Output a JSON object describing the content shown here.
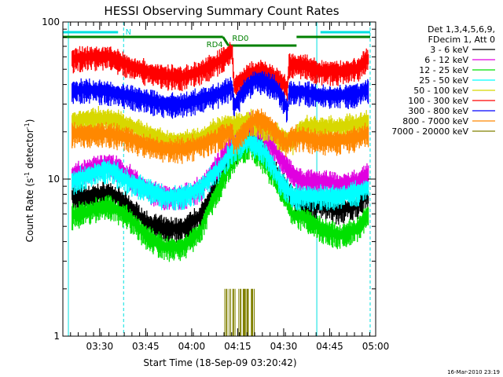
{
  "chart_data": {
    "type": "line",
    "title": "HESSI Observing Summary Count Rates",
    "xlabel": "Start Time (18-Sep-09 03:20:42)",
    "ylabel_main": "Count Rate (s",
    "ylabel_sup1": "-1",
    "ylabel_mid": " detector",
    "ylabel_sup2": "-1",
    "ylabel_end": ")",
    "y_scale": "log",
    "ylim": [
      1,
      100
    ],
    "y_ticks": [
      {
        "value": 1,
        "label": "1"
      },
      {
        "value": 10,
        "label": "10"
      },
      {
        "value": 100,
        "label": "100"
      }
    ],
    "xlim_minutes": [
      3.3,
      5.0
    ],
    "x_ticks": [
      {
        "value": 3.5,
        "label": "03:30"
      },
      {
        "value": 3.75,
        "label": "03:45"
      },
      {
        "value": 4.0,
        "label": "04:00"
      },
      {
        "value": 4.25,
        "label": "04:15"
      },
      {
        "value": 4.5,
        "label": "04:30"
      },
      {
        "value": 4.75,
        "label": "04:45"
      },
      {
        "value": 5.0,
        "label": "05:00"
      }
    ],
    "legend_header": [
      "Det 1,3,4,5,6,9,",
      "FDecim 1, Att 0"
    ],
    "legend_position": "right",
    "series": [
      {
        "name": "3 - 6 keV",
        "color": "#000000",
        "x": [
          3.35,
          3.45,
          3.55,
          3.65,
          3.75,
          3.85,
          3.95,
          4.05,
          4.15,
          4.25,
          4.32,
          4.4,
          4.48,
          4.55,
          4.6,
          4.7,
          4.8,
          4.9,
          4.95
        ],
        "y": [
          8,
          8,
          8.5,
          7,
          5.5,
          5,
          5,
          6,
          10,
          16,
          19,
          15,
          10,
          8,
          7,
          7,
          6.5,
          7,
          8
        ]
      },
      {
        "name": "6 - 12 keV",
        "color": "#e000e0",
        "x": [
          3.35,
          3.45,
          3.55,
          3.65,
          3.75,
          3.85,
          3.95,
          4.05,
          4.15,
          4.25,
          4.32,
          4.4,
          4.48,
          4.55,
          4.6,
          4.7,
          4.8,
          4.9,
          4.95
        ],
        "y": [
          11,
          12,
          13,
          11,
          9,
          8,
          8,
          9,
          13,
          20,
          23,
          19,
          14,
          11,
          10,
          10,
          9.5,
          10,
          11
        ]
      },
      {
        "name": "12 - 25 keV",
        "color": "#00e000",
        "x": [
          3.35,
          3.45,
          3.55,
          3.65,
          3.75,
          3.85,
          3.95,
          4.05,
          4.15,
          4.25,
          4.32,
          4.4,
          4.48,
          4.55,
          4.6,
          4.7,
          4.8,
          4.9,
          4.95
        ],
        "y": [
          6,
          6.5,
          7,
          6,
          4.5,
          3.8,
          3.8,
          4.8,
          9,
          15,
          17,
          13,
          9,
          6,
          6,
          5,
          4.5,
          5,
          6
        ]
      },
      {
        "name": "25 - 50 keV",
        "color": "#00ffff",
        "x": [
          3.35,
          3.45,
          3.55,
          3.65,
          3.75,
          3.85,
          3.95,
          4.05,
          4.15,
          4.25,
          4.32,
          4.4,
          4.48,
          4.55,
          4.6,
          4.7,
          4.8,
          4.9,
          4.95
        ],
        "y": [
          10,
          11,
          12,
          10,
          9,
          8,
          8,
          9,
          12,
          17,
          18,
          15,
          10,
          8,
          8,
          8,
          8,
          8.5,
          9
        ]
      },
      {
        "name": "50 - 100 keV",
        "color": "#d8d800",
        "x": [
          3.35,
          3.45,
          3.55,
          3.65,
          3.75,
          3.85,
          3.95,
          4.05,
          4.15,
          4.25,
          4.32,
          4.4,
          4.48,
          4.55,
          4.6,
          4.7,
          4.8,
          4.9,
          4.95
        ],
        "y": [
          24,
          25,
          25,
          23,
          20,
          18,
          18,
          19,
          22,
          23,
          24,
          22,
          19,
          18,
          22,
          22,
          22,
          23,
          24
        ]
      },
      {
        "name": "100 - 300 keV",
        "color": "#ff0000",
        "x": [
          3.35,
          3.45,
          3.55,
          3.65,
          3.75,
          3.85,
          3.95,
          4.05,
          4.15,
          4.22,
          4.23,
          4.3,
          4.35,
          4.4,
          4.45,
          4.5,
          4.52,
          4.53,
          4.6,
          4.7,
          4.8,
          4.9,
          4.95
        ],
        "y": [
          60,
          62,
          62,
          55,
          50,
          47,
          46,
          50,
          58,
          68,
          40,
          47,
          50,
          50,
          45,
          42,
          38,
          55,
          55,
          50,
          50,
          52,
          60
        ]
      },
      {
        "name": "300 - 800 keV",
        "color": "#0000ff",
        "x": [
          3.35,
          3.45,
          3.55,
          3.65,
          3.75,
          3.85,
          3.95,
          4.05,
          4.15,
          4.22,
          4.23,
          4.3,
          4.35,
          4.4,
          4.45,
          4.5,
          4.52,
          4.53,
          4.6,
          4.7,
          4.8,
          4.9,
          4.95
        ],
        "y": [
          38,
          38,
          37,
          35,
          33,
          31,
          31,
          33,
          36,
          40,
          30,
          40,
          44,
          43,
          40,
          33,
          28,
          37,
          37,
          35,
          35,
          36,
          38
        ]
      },
      {
        "name": "800 - 7000 keV",
        "color": "#ff8800",
        "x": [
          3.35,
          3.45,
          3.55,
          3.65,
          3.75,
          3.85,
          3.95,
          4.05,
          4.15,
          4.22,
          4.23,
          4.3,
          4.35,
          4.4,
          4.45,
          4.5,
          4.52,
          4.53,
          4.6,
          4.7,
          4.8,
          4.9,
          4.95
        ],
        "y": [
          20,
          20,
          20,
          19,
          17,
          16,
          16,
          17,
          19,
          21,
          17,
          22,
          25,
          24,
          21,
          18,
          17,
          19,
          19,
          18,
          18,
          19,
          20
        ]
      },
      {
        "name": "7000 - 20000 keV",
        "color": "#808000",
        "x": [
          4.18,
          4.2,
          4.22,
          4.24,
          4.26,
          4.28,
          4.3,
          4.32
        ],
        "y": [
          1,
          2,
          1,
          2,
          1,
          2,
          1,
          1
        ]
      }
    ],
    "annotations": [
      {
        "text": "N"
      },
      {
        "text": "RD4"
      },
      {
        "text": "RD0"
      }
    ],
    "footer": "16-Mar-2010 23:19"
  }
}
